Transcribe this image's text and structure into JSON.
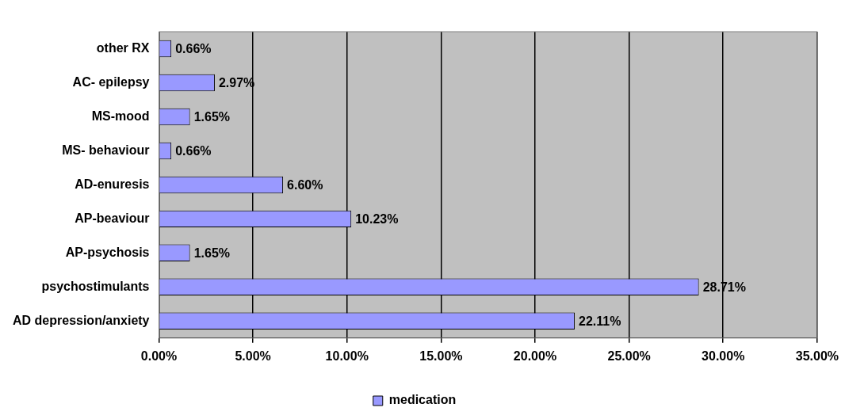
{
  "chart_data": {
    "type": "bar",
    "orientation": "horizontal",
    "categories": [
      "other RX",
      "AC- epilepsy",
      "MS-mood",
      "MS- behaviour",
      "AD-enuresis",
      "AP-beaviour",
      "AP-psychosis",
      "psychostimulants",
      "AD depression/anxiety"
    ],
    "series": [
      {
        "name": "medication",
        "color": "#9999ff",
        "values": [
          0.66,
          2.97,
          1.65,
          0.66,
          6.6,
          10.23,
          1.65,
          28.71,
          22.11
        ],
        "value_labels": [
          "0.66%",
          "2.97%",
          "1.65%",
          "0.66%",
          "6.60%",
          "10.23%",
          "1.65%",
          "28.71%",
          "22.11%"
        ]
      }
    ],
    "xlim": [
      0,
      35
    ],
    "xticks": [
      {
        "value": 0,
        "label": "0.00%"
      },
      {
        "value": 5,
        "label": "5.00%"
      },
      {
        "value": 10,
        "label": "10.00%"
      },
      {
        "value": 15,
        "label": "15.00%"
      },
      {
        "value": 20,
        "label": "20.00%"
      },
      {
        "value": 25,
        "label": "25.00%"
      },
      {
        "value": 30,
        "label": "30.00%"
      },
      {
        "value": 35,
        "label": "35.00%"
      }
    ],
    "grid": "x",
    "legend": "bottom"
  }
}
